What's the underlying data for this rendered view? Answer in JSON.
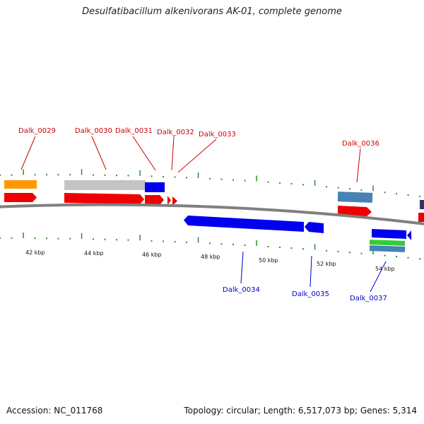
{
  "title": "Desulfatibacillum alkenivorans AK-01, complete genome",
  "footer": {
    "accession": "Accession: NC_011768",
    "summary": "Topology: circular; Length: 6,517,073 bp; Genes: 5,314"
  },
  "colors": {
    "backbone": "#808080",
    "forward_label": "#cc0000",
    "reverse_label": "#0000cc",
    "tick": "#2e8b2e",
    "cds_red": "#ee0000",
    "cds_blue": "#0000ee",
    "rna_green": "#33cc33",
    "feature_orange": "#ff9900",
    "feature_gray": "#c0c0c0",
    "feature_steel": "#4682b4",
    "feature_navy": "#333366"
  },
  "ruler": {
    "unit": "kbp",
    "labels": [
      {
        "text": "42 kbp",
        "kbp": 42
      },
      {
        "text": "44 kbp",
        "kbp": 44
      },
      {
        "text": "46 kbp",
        "kbp": 46
      },
      {
        "text": "48 kbp",
        "kbp": 48
      },
      {
        "text": "50 kbp",
        "kbp": 50
      },
      {
        "text": "52 kbp",
        "kbp": 52
      },
      {
        "text": "54 kbp",
        "kbp": 54
      }
    ]
  },
  "genes": [
    {
      "label": "Dalk_0029",
      "strand": "forward",
      "start_kbp": 41.5,
      "end_kbp": 42.4
    },
    {
      "label": "Dalk_0030",
      "strand": "forward",
      "start_kbp": 43.7,
      "end_kbp": 46.3
    },
    {
      "label": "Dalk_0031",
      "strand": "forward",
      "start_kbp": 46.3,
      "end_kbp": 47.0
    },
    {
      "label": "Dalk_0032",
      "strand": "forward",
      "start_kbp": 47.0,
      "end_kbp": 47.2
    },
    {
      "label": "Dalk_0033",
      "strand": "forward",
      "start_kbp": 47.2,
      "end_kbp": 47.4
    },
    {
      "label": "Dalk_0034",
      "strand": "reverse",
      "start_kbp": 47.9,
      "end_kbp": 51.6
    },
    {
      "label": "Dalk_0035",
      "strand": "reverse",
      "start_kbp": 51.6,
      "end_kbp": 52.3
    },
    {
      "label": "Dalk_0036",
      "strand": "forward",
      "start_kbp": 53.3,
      "end_kbp": 54.4
    },
    {
      "label": "Dalk_0037",
      "strand": "reverse",
      "start_kbp": 54.5,
      "end_kbp": 55.8
    }
  ]
}
